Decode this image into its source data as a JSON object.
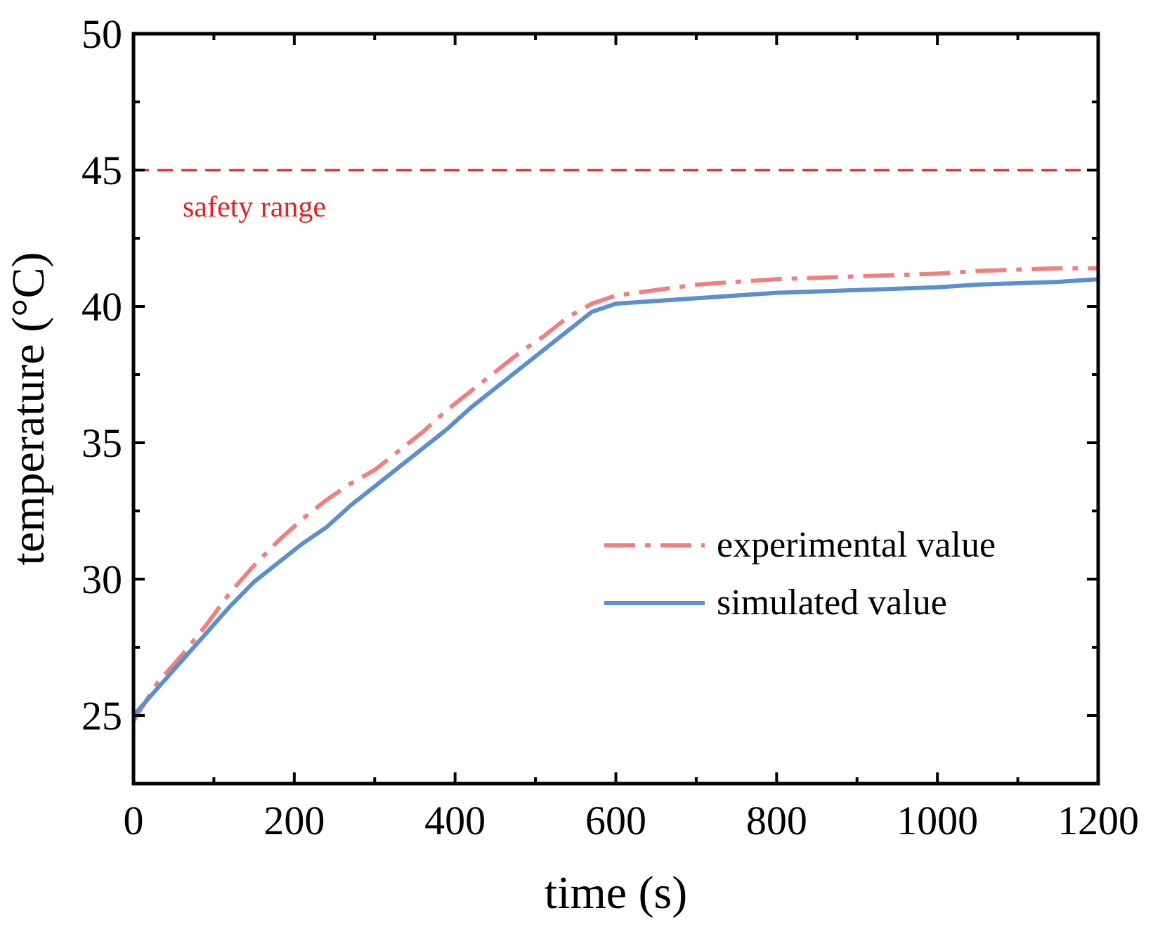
{
  "chart_data": {
    "type": "line",
    "title": "",
    "xlabel": "time (s)",
    "ylabel": "temperature (°C)",
    "xlim": [
      0,
      1200
    ],
    "ylim": [
      22.5,
      50
    ],
    "xticks": [
      0,
      200,
      400,
      600,
      800,
      1000,
      1200
    ],
    "yticks": [
      25,
      30,
      35,
      40,
      45,
      50
    ],
    "grid": false,
    "legend_position": "lower-right",
    "series": [
      {
        "name": "experimental value",
        "style": "dash-dot",
        "color": "#f08080",
        "x": [
          0,
          30,
          60,
          90,
          120,
          150,
          180,
          210,
          240,
          270,
          300,
          330,
          360,
          390,
          420,
          450,
          480,
          510,
          540,
          570,
          600,
          650,
          700,
          800,
          900,
          1000,
          1050,
          1100,
          1150,
          1200
        ],
        "y": [
          24.8,
          26.2,
          27.2,
          28.3,
          29.5,
          30.5,
          31.4,
          32.2,
          32.9,
          33.5,
          34.0,
          34.7,
          35.4,
          36.2,
          36.9,
          37.6,
          38.3,
          38.9,
          39.6,
          40.1,
          40.4,
          40.6,
          40.8,
          41.0,
          41.1,
          41.2,
          41.3,
          41.35,
          41.4,
          41.4
        ]
      },
      {
        "name": "simulated value",
        "style": "solid",
        "color": "#5b8fd0",
        "x": [
          0,
          30,
          60,
          90,
          120,
          150,
          180,
          210,
          240,
          270,
          300,
          330,
          360,
          390,
          420,
          450,
          480,
          510,
          540,
          570,
          600,
          650,
          700,
          800,
          900,
          1000,
          1050,
          1100,
          1150,
          1200
        ],
        "y": [
          25.0,
          26.0,
          27.0,
          28.0,
          29.0,
          29.9,
          30.6,
          31.3,
          31.9,
          32.7,
          33.4,
          34.1,
          34.8,
          35.5,
          36.3,
          37.0,
          37.7,
          38.4,
          39.1,
          39.8,
          40.1,
          40.2,
          40.3,
          40.5,
          40.6,
          40.7,
          40.8,
          40.85,
          40.9,
          41.0
        ]
      }
    ],
    "reference_line": {
      "y": 45,
      "style": "dashed",
      "color": "#e82020",
      "label": "safety range"
    }
  }
}
